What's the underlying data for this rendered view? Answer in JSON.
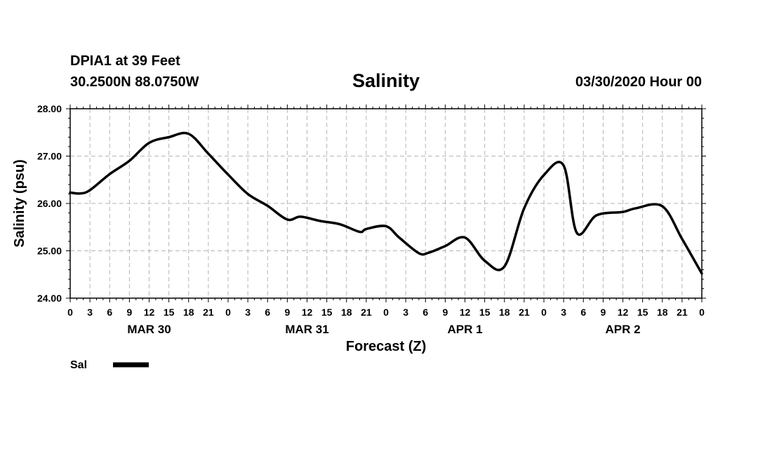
{
  "header": {
    "station": "DPIA1 at 39 Feet",
    "coords": "30.2500N 88.0750W",
    "runtime": "03/30/2020 Hour 00"
  },
  "chart_data": {
    "type": "line",
    "title": "Salinity",
    "xlabel": "Forecast (Z)",
    "ylabel": "Salinity (psu)",
    "xlim": [
      0,
      96
    ],
    "ylim": [
      24.0,
      28.0
    ],
    "y_ticks": [
      "24.00",
      "25.00",
      "26.00",
      "27.00",
      "28.00"
    ],
    "x_tick_labels": [
      "0",
      "3",
      "6",
      "9",
      "12",
      "15",
      "18",
      "21",
      "0",
      "3",
      "6",
      "9",
      "12",
      "15",
      "18",
      "21",
      "0",
      "3",
      "6",
      "9",
      "12",
      "15",
      "18",
      "21",
      "0",
      "3",
      "6",
      "9",
      "12",
      "15",
      "18",
      "21",
      "0"
    ],
    "day_labels": [
      "MAR 30",
      "MAR 31",
      "APR 1",
      "APR 2"
    ],
    "grid": true,
    "legend": "bottom-left",
    "series": [
      {
        "name": "Sal",
        "color": "#000000",
        "x": [
          0,
          1.5,
          3,
          6,
          9,
          12,
          15,
          18,
          21,
          24,
          27,
          30,
          33,
          35,
          38,
          41,
          44,
          45,
          48,
          50,
          53,
          54.5,
          57,
          60,
          63,
          66,
          69,
          72,
          75,
          77,
          80,
          84,
          86,
          90,
          93,
          96
        ],
        "values": [
          26.23,
          26.21,
          26.28,
          26.62,
          26.9,
          27.28,
          27.4,
          27.47,
          27.05,
          26.61,
          26.2,
          25.95,
          25.66,
          25.72,
          25.63,
          25.56,
          25.4,
          25.46,
          25.52,
          25.28,
          24.95,
          24.96,
          25.1,
          25.28,
          24.79,
          24.67,
          25.9,
          26.6,
          26.8,
          25.38,
          25.75,
          25.82,
          25.9,
          25.94,
          25.25,
          24.52
        ]
      }
    ]
  }
}
